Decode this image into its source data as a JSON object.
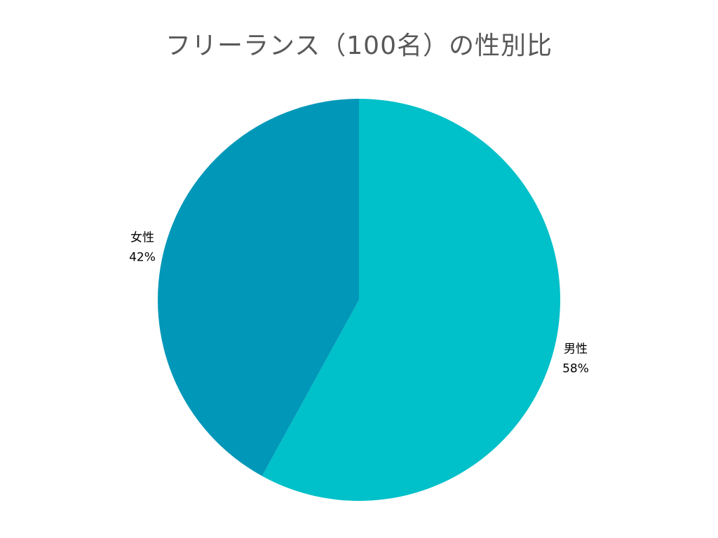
{
  "chart_data": {
    "type": "pie",
    "title": "フリーランス（100名）の性別比",
    "slices": [
      {
        "label": "男性",
        "value": 58,
        "value_label": "58%",
        "color": "#00c0c9"
      },
      {
        "label": "女性",
        "value": 42,
        "value_label": "42%",
        "color": "#0097b8"
      }
    ],
    "start_position": "12 o'clock",
    "direction": "clockwise",
    "legend": "none",
    "data_labels": "outside"
  }
}
